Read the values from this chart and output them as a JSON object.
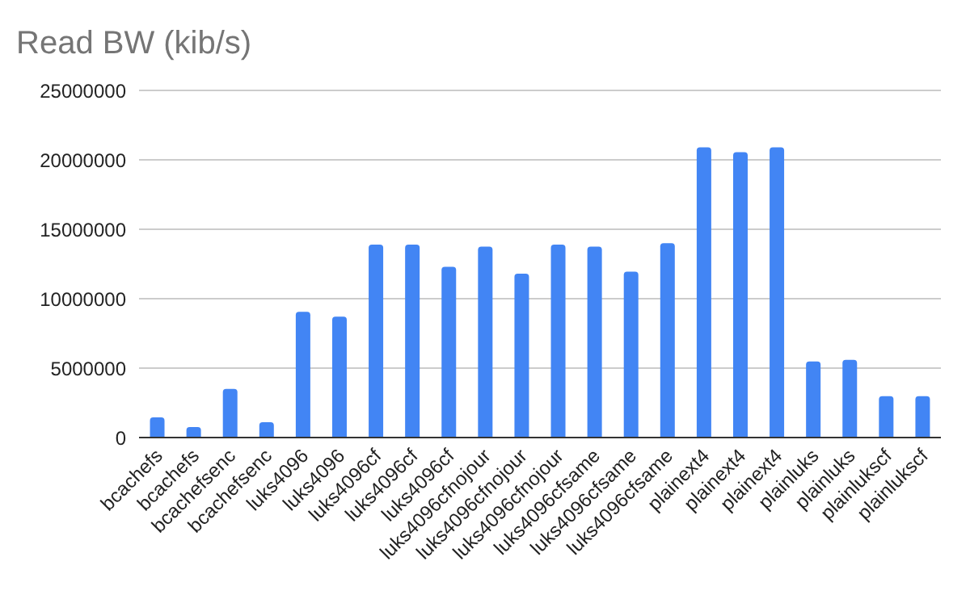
{
  "chart_data": {
    "type": "bar",
    "title": "Read BW (kib/s)",
    "categories": [
      "bcachefs",
      "bcachefs",
      "bcachefsenc",
      "bcachefsenc",
      "luks4096",
      "luks4096",
      "luks4096cf",
      "luks4096cf",
      "luks4096cf",
      "luks4096cfnojour",
      "luks4096cfnojour",
      "luks4096cfnojour",
      "luks4096cfsame",
      "luks4096cfsame",
      "luks4096cfsame",
      "plainext4",
      "plainext4",
      "plainext4",
      "plainluks",
      "plainluks",
      "plainlukscf",
      "plainlukscf"
    ],
    "values": [
      1450000,
      750000,
      3500000,
      1100000,
      9050000,
      8700000,
      13900000,
      13900000,
      12300000,
      13750000,
      11800000,
      13900000,
      13750000,
      11950000,
      14000000,
      20900000,
      20550000,
      20900000,
      5480000,
      5600000,
      2980000,
      2980000
    ],
    "color": "#4285f4",
    "ylim": [
      0,
      25000000
    ],
    "yticks": [
      0,
      5000000,
      10000000,
      15000000,
      20000000,
      25000000
    ],
    "grid": "y"
  }
}
